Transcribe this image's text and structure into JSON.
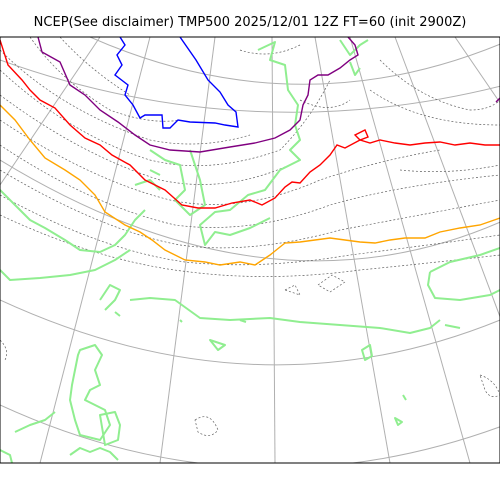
{
  "title": "NCEP(See disclaimer) TMP500 2025/12/01 12Z FT=60 (init 2900Z)",
  "map": {
    "projection": "polar stereographic",
    "layers": [
      "graticule",
      "coastlines",
      "isotherms"
    ],
    "colors": {
      "graticule": "#b0b0b0",
      "coastline": "#90ee90",
      "isotherm": "#606060",
      "blue_line": "#0000ff",
      "purple_line": "#800080",
      "red_line": "#ff0000",
      "orange_line": "#ffa500",
      "frame": "#000000"
    }
  }
}
